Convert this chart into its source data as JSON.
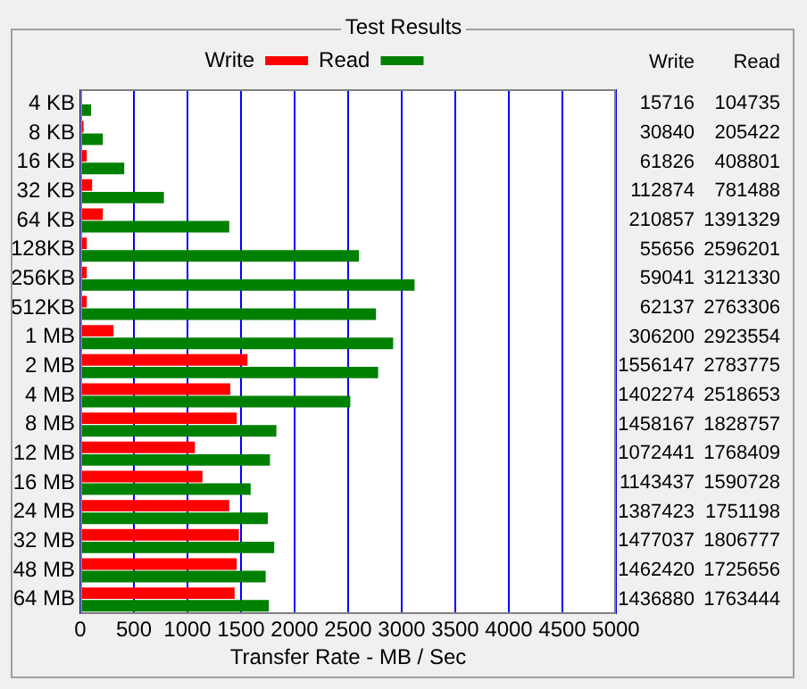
{
  "chart_data": {
    "type": "bar",
    "orientation": "horizontal",
    "title": "Test Results",
    "xlabel": "Transfer Rate - MB / Sec",
    "categories": [
      "4 KB",
      "8 KB",
      "16 KB",
      "32 KB",
      "64 KB",
      "128KB",
      "256KB",
      "512KB",
      "1 MB",
      "2 MB",
      "4 MB",
      "8 MB",
      "12 MB",
      "16 MB",
      "24 MB",
      "32 MB",
      "48 MB",
      "64 MB"
    ],
    "series": [
      {
        "name": "Write",
        "color": "#ff0000",
        "values": [
          null,
          30,
          60,
          110,
          210,
          60,
          60,
          60,
          310,
          1560,
          1400,
          1460,
          1070,
          1140,
          1390,
          1480,
          1460,
          1440
        ]
      },
      {
        "name": "Read",
        "color": "#008000",
        "values": [
          100,
          210,
          410,
          780,
          1390,
          2600,
          3120,
          2760,
          2920,
          2780,
          2520,
          1830,
          1770,
          1590,
          1750,
          1810,
          1730,
          1760
        ]
      }
    ],
    "annotations": [
      "15716",
      "104735",
      "30840",
      "205422",
      "61826",
      "408801",
      "112874",
      "781488",
      "210857",
      "1391329",
      "55656",
      "2596201",
      "59041",
      "3121330",
      "62137",
      "2763306",
      "306200",
      "2923554",
      "1556147",
      "2783775",
      "1402274",
      "2518653",
      "1458167",
      "1828757",
      "1072441",
      "1768409",
      "1143437",
      "1590728",
      "1387423",
      "1751198",
      "1477037",
      "1806777",
      "1462420",
      "1725656",
      "1436880",
      "1763444"
    ],
    "xlim": [
      0,
      5000
    ],
    "xticks": [
      0,
      500,
      1000,
      1500,
      2000,
      2500,
      3000,
      3500,
      4000,
      4500,
      5000
    ],
    "grid": "x",
    "legend": "top"
  }
}
